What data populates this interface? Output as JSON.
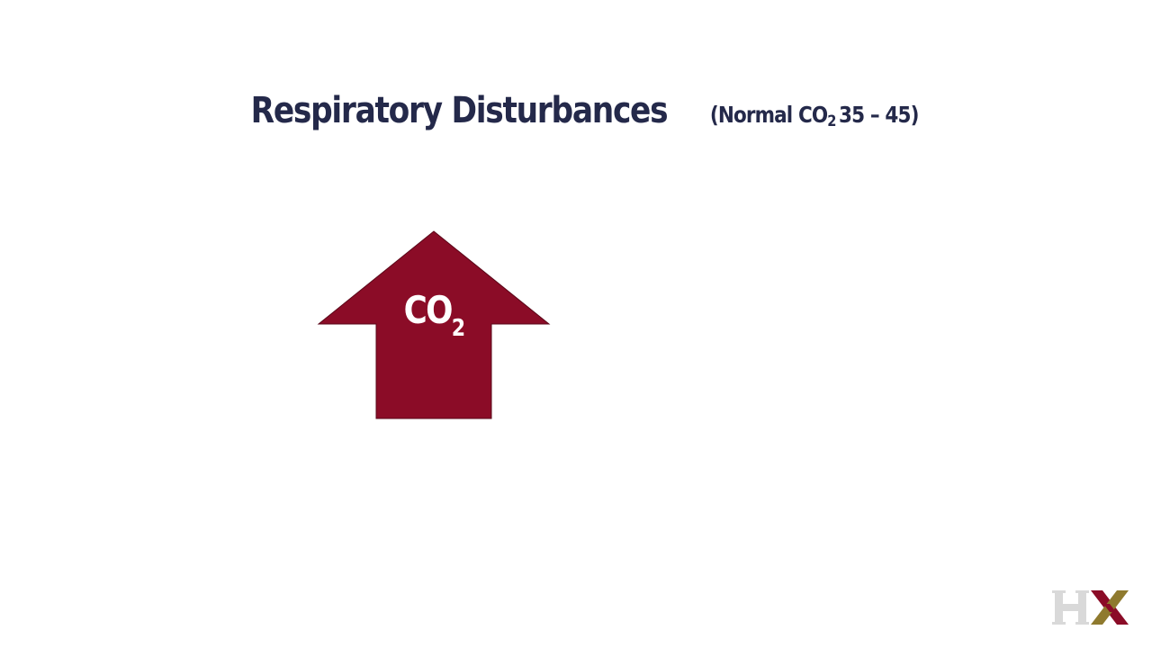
{
  "slide": {
    "title_main": "Respiratory Disturbances",
    "title_sub_prefix": "(Normal CO",
    "title_sub_subscript": "2",
    "title_sub_suffix": "35 – 45)"
  },
  "arrow": {
    "direction": "up",
    "label_main": "CO",
    "label_subscript": "2",
    "color": "#8b0c27"
  },
  "logo": {
    "text": "HX",
    "colors": {
      "h": "#d9d9d9",
      "x_left": "#8b0c27",
      "x_right": "#8f7a2e"
    }
  },
  "colors": {
    "title": "#24294a",
    "background": "#ffffff"
  }
}
